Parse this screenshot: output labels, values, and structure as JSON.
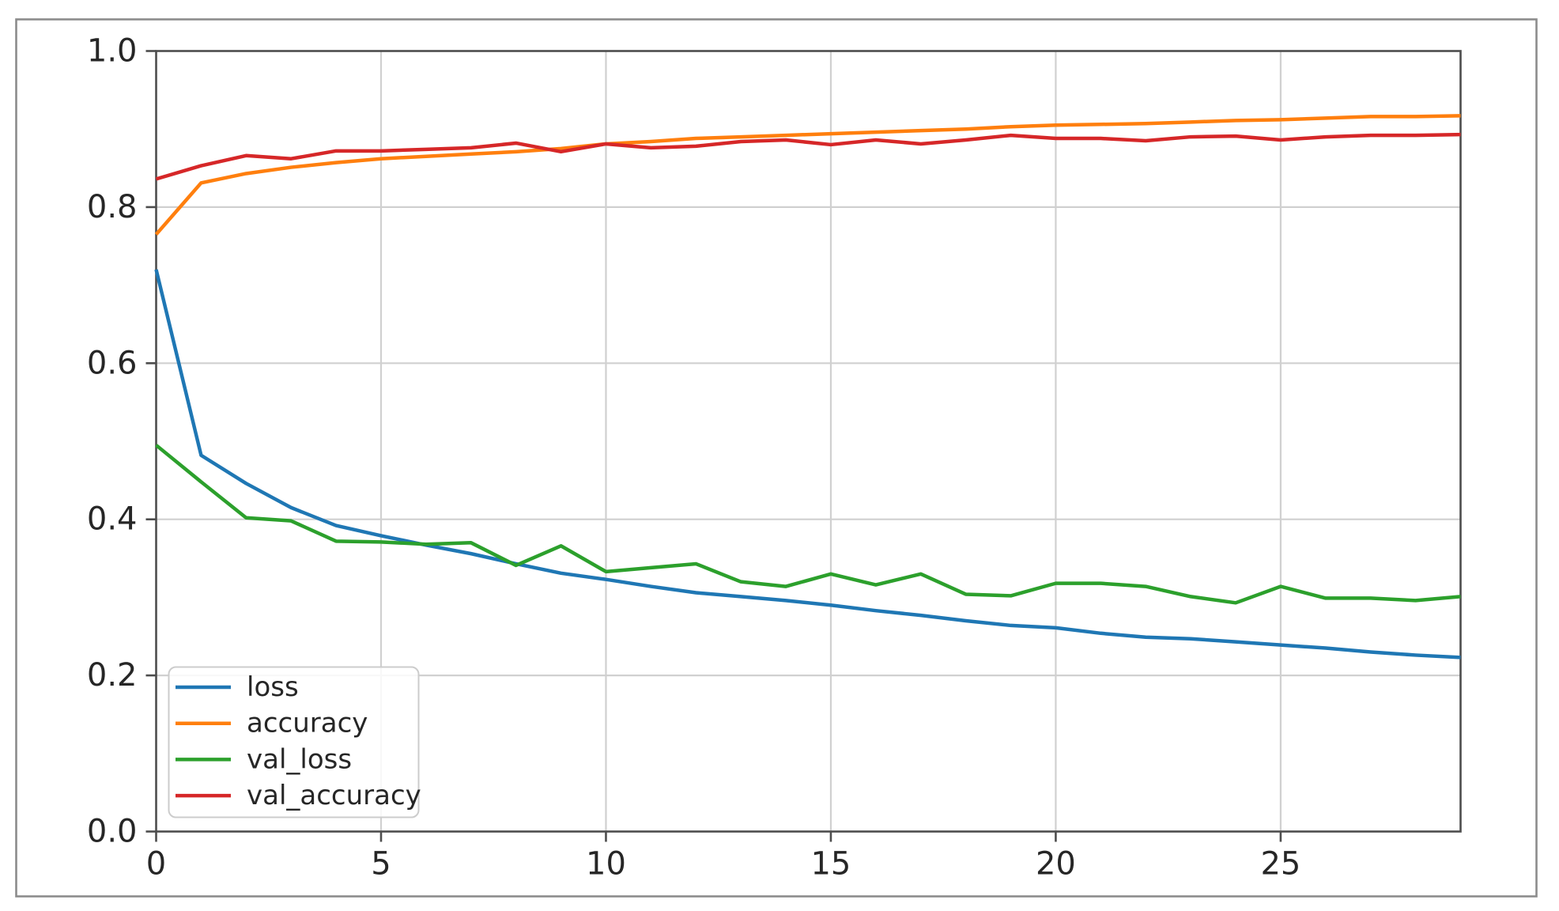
{
  "figure": {
    "background": "#ffffff",
    "border_color": "#8c8c8c",
    "axes_edge_color": "#4d4d4d",
    "grid_color": "#d0d0d0",
    "tick_label_color": "#262626"
  },
  "chart_data": {
    "type": "line",
    "title": "",
    "xlabel": "",
    "ylabel": "",
    "xlim": [
      0,
      29
    ],
    "ylim": [
      0.0,
      1.0
    ],
    "x_ticks": [
      0,
      5,
      10,
      15,
      20,
      25
    ],
    "x_tick_labels": [
      "0",
      "5",
      "10",
      "15",
      "20",
      "25"
    ],
    "y_ticks": [
      0.0,
      0.2,
      0.4,
      0.6,
      0.8,
      1.0
    ],
    "y_tick_labels": [
      "0.0",
      "0.2",
      "0.4",
      "0.6",
      "0.8",
      "1.0"
    ],
    "grid": true,
    "legend_position": "lower-left",
    "x": [
      0,
      1,
      2,
      3,
      4,
      5,
      6,
      7,
      8,
      9,
      10,
      11,
      12,
      13,
      14,
      15,
      16,
      17,
      18,
      19,
      20,
      21,
      22,
      23,
      24,
      25,
      26,
      27,
      28,
      29
    ],
    "series": [
      {
        "name": "loss",
        "color": "#1f77b4",
        "values": [
          0.72,
          0.482,
          0.446,
          0.415,
          0.392,
          0.379,
          0.367,
          0.356,
          0.343,
          0.331,
          0.323,
          0.314,
          0.306,
          0.301,
          0.296,
          0.29,
          0.283,
          0.277,
          0.27,
          0.264,
          0.261,
          0.254,
          0.249,
          0.247,
          0.243,
          0.239,
          0.235,
          0.23,
          0.226,
          0.223
        ]
      },
      {
        "name": "accuracy",
        "color": "#ff7f0e",
        "values": [
          0.765,
          0.831,
          0.843,
          0.851,
          0.857,
          0.862,
          0.865,
          0.868,
          0.871,
          0.875,
          0.881,
          0.884,
          0.888,
          0.89,
          0.892,
          0.894,
          0.896,
          0.898,
          0.9,
          0.903,
          0.905,
          0.906,
          0.907,
          0.909,
          0.911,
          0.912,
          0.914,
          0.916,
          0.916,
          0.917
        ]
      },
      {
        "name": "val_loss",
        "color": "#2ca02c",
        "values": [
          0.495,
          0.448,
          0.402,
          0.398,
          0.372,
          0.371,
          0.368,
          0.37,
          0.341,
          0.366,
          0.333,
          0.338,
          0.343,
          0.32,
          0.314,
          0.33,
          0.316,
          0.33,
          0.304,
          0.302,
          0.318,
          0.318,
          0.314,
          0.301,
          0.293,
          0.314,
          0.299,
          0.299,
          0.296,
          0.301
        ]
      },
      {
        "name": "val_accuracy",
        "color": "#d62728",
        "values": [
          0.836,
          0.853,
          0.866,
          0.862,
          0.872,
          0.872,
          0.874,
          0.876,
          0.882,
          0.871,
          0.881,
          0.876,
          0.878,
          0.884,
          0.886,
          0.88,
          0.886,
          0.881,
          0.886,
          0.892,
          0.888,
          0.888,
          0.885,
          0.89,
          0.891,
          0.886,
          0.89,
          0.892,
          0.892,
          0.893
        ]
      }
    ]
  }
}
